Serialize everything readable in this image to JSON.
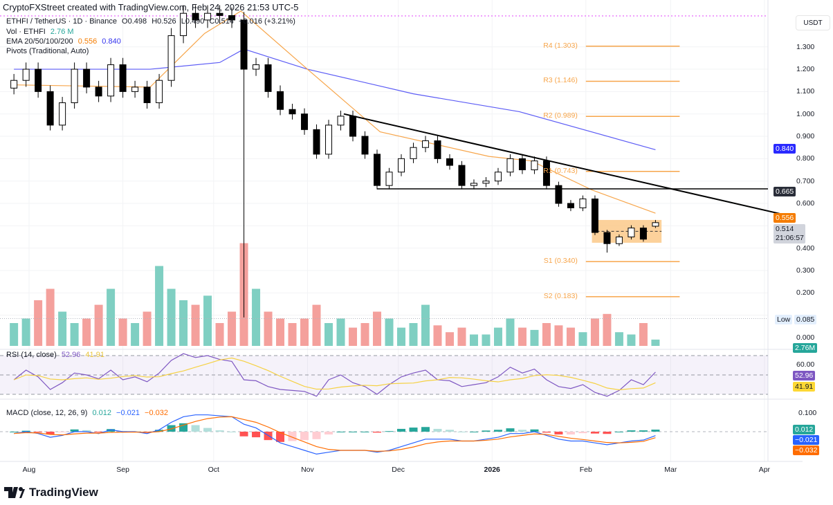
{
  "header": {
    "credit": "CryptoFXStreet created with TradingView.com, Feb 24, 2026 21:53 UTC-5"
  },
  "legend": {
    "symbol": "ETHFI / TetherUS · 1D · Binance",
    "open": "O0.498",
    "high": "H0.526",
    "low": "L0.490",
    "close": "C0.514",
    "change": "+0.016 (+3.21%)",
    "vol_label": "Vol · ETHFI",
    "vol_value": "2.76 M",
    "ema_label": "EMA 20/50/100/200",
    "ema50_value": "0.556",
    "ema200_value": "0.840",
    "pivots_label": "Pivots (Traditional, Auto)",
    "rsi_label": "RSI (14, close)",
    "rsi_value": "52.96",
    "rsi_ma_value": "41.91",
    "macd_label": "MACD (close, 12, 26, 9)",
    "macd_hist_value": "0.012",
    "macd_value": "−0.021",
    "macd_signal_value": "−0.032"
  },
  "axis": {
    "currency": "USDT",
    "price_ticks": [
      "1.300",
      "1.200",
      "1.100",
      "1.000",
      "0.900",
      "0.800",
      "0.700",
      "0.600",
      "0.400",
      "0.300",
      "0.200",
      "0.000"
    ],
    "rsi_tick": "60.00",
    "macd_tick": "0.100",
    "dates": [
      "Aug",
      "Sep",
      "Oct",
      "Nov",
      "Dec",
      "2026",
      "Feb",
      "Mar",
      "Apr"
    ]
  },
  "price_labels": {
    "ema200": "0.840",
    "hline": "0.665",
    "ema50": "0.556",
    "last": "0.514",
    "countdown": "21:06:57",
    "low_tag": "Low",
    "low_value": "0.085",
    "volume": "2.76M",
    "rsi": "52.96",
    "rsi_ma": "41.91",
    "macd_hist": "0.012",
    "macd": "−0.021",
    "macd_signal": "−0.032"
  },
  "pivots": [
    {
      "label": "R4 (1.303)",
      "value": 1.303
    },
    {
      "label": "R3 (1.146)",
      "value": 1.146
    },
    {
      "label": "R2 (0.989)",
      "value": 0.989
    },
    {
      "label": "R1 (0.743)",
      "value": 0.743
    },
    {
      "label": "S1 (0.340)",
      "value": 0.34
    },
    {
      "label": "S2 (0.183)",
      "value": 0.183
    }
  ],
  "brand": {
    "logo_text": "TradingView"
  },
  "colors": {
    "up": "#ffffff",
    "down": "#000000",
    "ema50": "#f7a54a",
    "ema200": "#5b5bf5",
    "vol_up": "#7fcfc2",
    "vol_down": "#f4a09c",
    "rsi": "#7e57c2",
    "rsi_ma": "#f5d142",
    "macd": "#2962ff",
    "signal": "#ff6d00",
    "pivot": "#f7a54a",
    "zone": "#fbc98a"
  },
  "chart_data": {
    "type": "candlestick",
    "title": "ETHFI / TetherUS · 1D · Binance",
    "ylabel": "USDT",
    "ylim": [
      0,
      1.45
    ],
    "grid": true,
    "dates": [
      "2025-07-27",
      "2025-07-31",
      "2025-08-04",
      "2025-08-08",
      "2025-08-12",
      "2025-08-16",
      "2025-08-20",
      "2025-08-24",
      "2025-08-28",
      "2025-09-01",
      "2025-09-05",
      "2025-09-09",
      "2025-09-13",
      "2025-09-17",
      "2025-09-21",
      "2025-09-25",
      "2025-09-29",
      "2025-10-03",
      "2025-10-07",
      "2025-10-11",
      "2025-10-15",
      "2025-10-19",
      "2025-10-23",
      "2025-10-27",
      "2025-10-31",
      "2025-11-04",
      "2025-11-08",
      "2025-11-12",
      "2025-11-16",
      "2025-11-20",
      "2025-11-24",
      "2025-11-28",
      "2025-12-02",
      "2025-12-06",
      "2025-12-10",
      "2025-12-14",
      "2025-12-18",
      "2025-12-22",
      "2025-12-26",
      "2025-12-30",
      "2026-01-03",
      "2026-01-07",
      "2026-01-11",
      "2026-01-15",
      "2026-01-19",
      "2026-01-23",
      "2026-01-27",
      "2026-01-31",
      "2026-02-04",
      "2026-02-08",
      "2026-02-12",
      "2026-02-16",
      "2026-02-20",
      "2026-02-24"
    ],
    "close": [
      1.15,
      1.2,
      1.1,
      0.95,
      1.05,
      1.2,
      1.12,
      1.08,
      1.22,
      1.1,
      1.12,
      1.05,
      1.15,
      1.35,
      1.45,
      1.42,
      1.45,
      1.44,
      1.42,
      1.2,
      1.22,
      1.1,
      1.02,
      1.0,
      0.93,
      0.82,
      0.95,
      0.99,
      0.9,
      0.82,
      0.68,
      0.74,
      0.8,
      0.85,
      0.88,
      0.8,
      0.77,
      0.68,
      0.69,
      0.7,
      0.74,
      0.8,
      0.75,
      0.79,
      0.68,
      0.6,
      0.58,
      0.62,
      0.47,
      0.42,
      0.45,
      0.49,
      0.44,
      0.514
    ],
    "last_candle": {
      "open": 0.498,
      "high": 0.526,
      "low": 0.49,
      "close": 0.514
    },
    "wick_low_override": {
      "2025-10-11": 0.09,
      "2026-02-08": 0.38
    },
    "ema50": [
      [
        "2025-07-27",
        1.13
      ],
      [
        "2025-09-10",
        1.12
      ],
      [
        "2025-09-28",
        1.36
      ],
      [
        "2025-10-10",
        1.46
      ],
      [
        "2025-11-01",
        1.2
      ],
      [
        "2025-11-25",
        0.92
      ],
      [
        "2025-12-31",
        0.81
      ],
      [
        "2026-01-14",
        0.79
      ],
      [
        "2026-02-03",
        0.66
      ],
      [
        "2026-02-24",
        0.556
      ]
    ],
    "ema200": [
      [
        "2025-07-27",
        1.2
      ],
      [
        "2025-09-10",
        1.2
      ],
      [
        "2025-10-03",
        1.23
      ],
      [
        "2025-10-11",
        1.29
      ],
      [
        "2025-11-01",
        1.2
      ],
      [
        "2025-12-06",
        1.09
      ],
      [
        "2026-01-10",
        1.01
      ],
      [
        "2026-02-24",
        0.84
      ]
    ],
    "trendline": [
      [
        "2025-11-13",
        1.0
      ],
      [
        "2026-04-09",
        0.545
      ]
    ],
    "horizontal_line": {
      "from": "2025-11-24",
      "value": 0.665
    },
    "range_box": {
      "from": "2026-02-03",
      "to": "2026-02-26",
      "top": 0.526,
      "bottom": 0.424,
      "mid": 0.475
    },
    "pivot_span": [
      "2026-02-01",
      "2026-03-04"
    ],
    "low_level": 0.085,
    "volume_m": [
      10,
      12,
      20,
      25,
      15,
      10,
      12,
      18,
      25,
      12,
      10,
      15,
      35,
      25,
      20,
      18,
      22,
      10,
      15,
      45,
      25,
      15,
      12,
      10,
      12,
      18,
      10,
      12,
      8,
      10,
      15,
      12,
      8,
      10,
      18,
      9,
      6,
      8,
      5,
      5,
      8,
      12,
      8,
      7,
      10,
      9,
      8,
      6,
      12,
      14,
      6,
      5,
      10,
      2.76
    ],
    "rsi": [
      45,
      55,
      48,
      35,
      42,
      52,
      50,
      46,
      55,
      45,
      48,
      43,
      52,
      65,
      72,
      68,
      70,
      66,
      64,
      45,
      44,
      38,
      35,
      34,
      33,
      28,
      45,
      50,
      42,
      38,
      30,
      40,
      48,
      52,
      55,
      45,
      44,
      38,
      40,
      42,
      48,
      58,
      52,
      56,
      45,
      38,
      36,
      40,
      32,
      28,
      34,
      45,
      40,
      52.96
    ],
    "rsi_levels": [
      70,
      50,
      30
    ],
    "macd": [
      -0.01,
      0.0,
      -0.01,
      -0.03,
      -0.02,
      0.0,
      0.0,
      -0.01,
      0.01,
      0.0,
      0.0,
      -0.01,
      0.01,
      0.05,
      0.08,
      0.09,
      0.09,
      0.085,
      0.08,
      0.04,
      0.02,
      -0.02,
      -0.06,
      -0.08,
      -0.1,
      -0.12,
      -0.11,
      -0.1,
      -0.1,
      -0.1,
      -0.11,
      -0.1,
      -0.08,
      -0.06,
      -0.04,
      -0.04,
      -0.04,
      -0.05,
      -0.05,
      -0.04,
      -0.03,
      -0.01,
      -0.01,
      0.0,
      -0.02,
      -0.04,
      -0.05,
      -0.05,
      -0.06,
      -0.07,
      -0.06,
      -0.05,
      -0.045,
      -0.021
    ],
    "signal": [
      -0.01,
      -0.005,
      -0.007,
      -0.015,
      -0.017,
      -0.012,
      -0.008,
      -0.008,
      -0.004,
      -0.003,
      -0.002,
      -0.004,
      0.0,
      0.015,
      0.035,
      0.055,
      0.07,
      0.078,
      0.08,
      0.065,
      0.05,
      0.025,
      -0.005,
      -0.03,
      -0.055,
      -0.08,
      -0.095,
      -0.1,
      -0.1,
      -0.1,
      -0.105,
      -0.103,
      -0.095,
      -0.082,
      -0.065,
      -0.055,
      -0.05,
      -0.05,
      -0.05,
      -0.046,
      -0.04,
      -0.028,
      -0.02,
      -0.012,
      -0.015,
      -0.025,
      -0.035,
      -0.042,
      -0.05,
      -0.058,
      -0.06,
      -0.057,
      -0.052,
      -0.032
    ]
  }
}
